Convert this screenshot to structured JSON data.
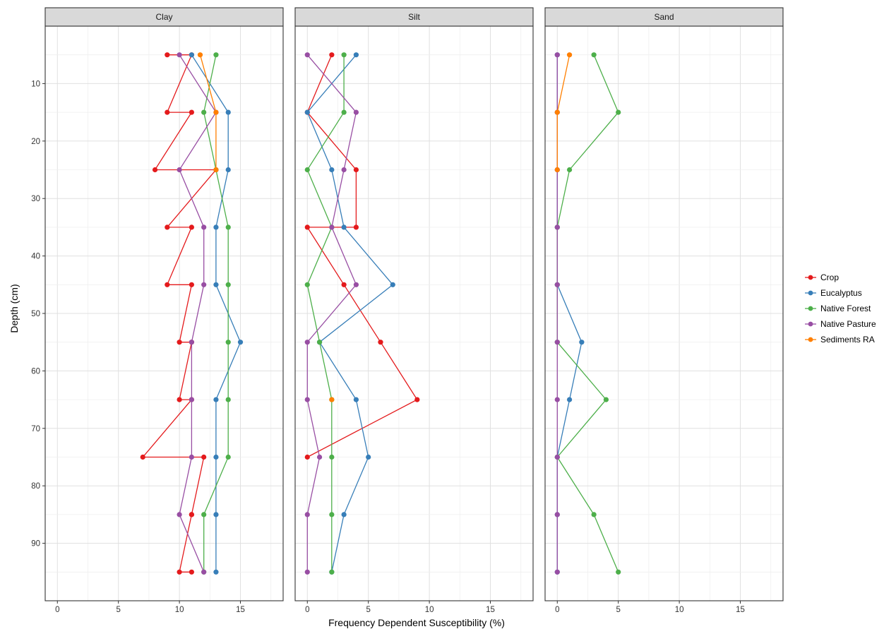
{
  "chart_data": {
    "type": "line",
    "facets": [
      "Clay",
      "Silt",
      "Sand"
    ],
    "xlabel": "Frequency Dependent Susceptibility (%)",
    "ylabel": "Depth (cm)",
    "xlim": [
      -1,
      18.5
    ],
    "ylim": [
      0,
      100
    ],
    "y_reversed": true,
    "x_ticks": [
      0,
      5,
      10,
      15
    ],
    "y_ticks": [
      10,
      20,
      30,
      40,
      50,
      60,
      70,
      80,
      90
    ],
    "depths": [
      5,
      15,
      25,
      35,
      45,
      55,
      65,
      75,
      85,
      95
    ],
    "grid": true,
    "legend_position": "right",
    "series": [
      {
        "name": "Crop",
        "color": "#e41a1c",
        "values": {
          "Clay": [
            [
              9,
              5
            ],
            [
              11,
              5
            ],
            [
              9,
              15
            ],
            [
              11,
              15
            ],
            [
              8,
              25
            ],
            [
              13,
              25
            ],
            [
              9,
              35
            ],
            [
              11,
              35
            ],
            [
              9,
              45
            ],
            [
              11,
              45
            ],
            [
              10,
              55
            ],
            [
              11,
              55
            ],
            [
              10,
              65
            ],
            [
              11,
              65
            ],
            [
              7,
              75
            ],
            [
              12,
              75
            ],
            [
              11,
              85
            ],
            [
              11,
              85
            ],
            [
              10,
              95
            ],
            [
              11,
              95
            ]
          ],
          "Silt": [
            [
              2,
              5
            ],
            [
              0,
              15
            ],
            [
              4,
              25
            ],
            [
              4,
              35
            ],
            [
              0,
              35
            ],
            [
              3,
              45
            ],
            [
              6,
              55
            ],
            [
              9,
              65
            ],
            [
              0,
              75
            ]
          ],
          "Sand": []
        }
      },
      {
        "name": "Eucalyptus",
        "color": "#377eb8",
        "values": {
          "Clay": [
            [
              11,
              5
            ],
            [
              14,
              15
            ],
            [
              14,
              25
            ],
            [
              13,
              35
            ],
            [
              13,
              45
            ],
            [
              15,
              55
            ],
            [
              13,
              65
            ],
            [
              13,
              75
            ],
            [
              13,
              85
            ],
            [
              13,
              95
            ]
          ],
          "Silt": [
            [
              4,
              5
            ],
            [
              0,
              15
            ],
            [
              2,
              25
            ],
            [
              3,
              35
            ],
            [
              7,
              45
            ],
            [
              1,
              55
            ],
            [
              4,
              65
            ],
            [
              5,
              75
            ],
            [
              3,
              85
            ],
            [
              2,
              95
            ]
          ],
          "Sand": [
            [
              0,
              5
            ],
            [
              0,
              15
            ],
            [
              0,
              25
            ],
            [
              0,
              35
            ],
            [
              0,
              45
            ],
            [
              2,
              55
            ],
            [
              1,
              65
            ],
            [
              0,
              75
            ],
            [
              0,
              85
            ],
            [
              0,
              95
            ]
          ]
        }
      },
      {
        "name": "Native Forest",
        "color": "#4daf4a",
        "values": {
          "Clay": [
            [
              13,
              5
            ],
            [
              12,
              15
            ],
            [
              13,
              25
            ],
            [
              14,
              35
            ],
            [
              14,
              45
            ],
            [
              14,
              55
            ],
            [
              14,
              65
            ],
            [
              14,
              75
            ],
            [
              12,
              85
            ],
            [
              12,
              95
            ]
          ],
          "Silt": [
            [
              3,
              5
            ],
            [
              3,
              15
            ],
            [
              0,
              25
            ],
            [
              2,
              35
            ],
            [
              0,
              45
            ],
            [
              1,
              55
            ],
            [
              2,
              65
            ],
            [
              2,
              75
            ],
            [
              2,
              85
            ],
            [
              2,
              95
            ]
          ],
          "Sand": [
            [
              3,
              5
            ],
            [
              5,
              15
            ],
            [
              1,
              25
            ],
            [
              0,
              35
            ],
            [
              0,
              45
            ],
            [
              0,
              55
            ],
            [
              4,
              65
            ],
            [
              0,
              75
            ],
            [
              3,
              85
            ],
            [
              5,
              95
            ]
          ]
        }
      },
      {
        "name": "Native Pasture",
        "color": "#984ea3",
        "values": {
          "Clay": [
            [
              10,
              5
            ],
            [
              13,
              15
            ],
            [
              10,
              25
            ],
            [
              12,
              35
            ],
            [
              12,
              45
            ],
            [
              11,
              55
            ],
            [
              11,
              65
            ],
            [
              11,
              75
            ],
            [
              10,
              85
            ],
            [
              12,
              95
            ]
          ],
          "Silt": [
            [
              0,
              5
            ],
            [
              4,
              15
            ],
            [
              3,
              25
            ],
            [
              2,
              35
            ],
            [
              4,
              45
            ],
            [
              0,
              55
            ],
            [
              0,
              65
            ],
            [
              1,
              75
            ],
            [
              0,
              85
            ],
            [
              0,
              95
            ]
          ],
          "Sand": [
            [
              0,
              5
            ],
            [
              0,
              15
            ],
            [
              0,
              25
            ],
            [
              0,
              35
            ],
            [
              0,
              45
            ],
            [
              0,
              55
            ],
            [
              0,
              65
            ],
            [
              0,
              75
            ],
            [
              0,
              85
            ],
            [
              0,
              95
            ]
          ]
        }
      },
      {
        "name": "Sediments RA",
        "color": "#ff7f00",
        "values": {
          "Clay": [
            [
              11.7,
              5
            ],
            [
              13,
              15
            ],
            [
              13,
              25
            ]
          ],
          "Silt": [
            [
              2,
              65
            ]
          ],
          "Sand": [
            [
              1,
              5
            ],
            [
              0,
              15
            ],
            [
              0,
              25
            ]
          ]
        }
      }
    ]
  }
}
